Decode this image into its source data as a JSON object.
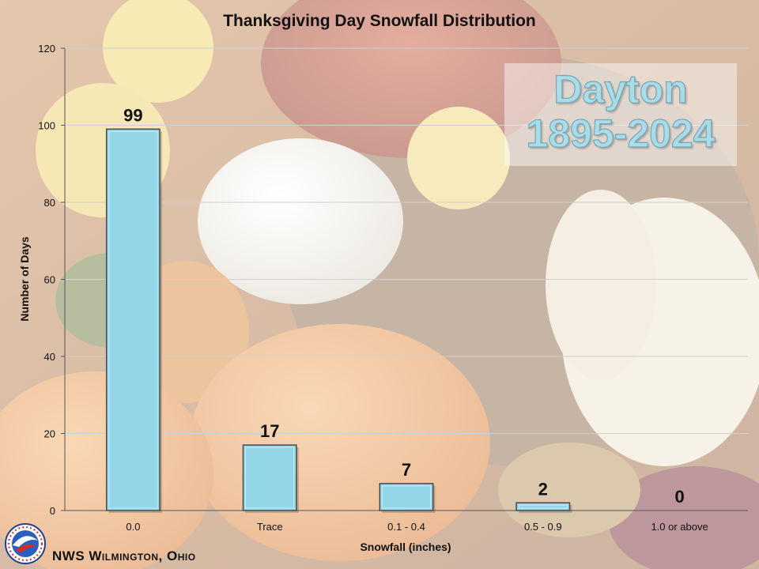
{
  "chart_data": {
    "type": "bar",
    "title": "Thanksgiving Day Snowfall Distribution",
    "xlabel": "Snowfall (inches)",
    "ylabel": "Number of Days",
    "categories": [
      "0.0",
      "Trace",
      "0.1 - 0.4",
      "0.5 - 0.9",
      "1.0 or above"
    ],
    "values": [
      99,
      17,
      7,
      2,
      0
    ],
    "data_labels": [
      "99",
      "17",
      "7",
      "2",
      "0"
    ],
    "ylim": [
      0,
      120
    ],
    "yticks": [
      "0",
      "20",
      "40",
      "60",
      "80",
      "100",
      "120"
    ],
    "grid": true,
    "bar_color": "#93d6e8",
    "bar_edge_color": "#4a4a4a"
  },
  "location": {
    "name": "Dayton",
    "years": "1895-2024",
    "color": "#a8dce8"
  },
  "footer": {
    "org": "NWS Wilmington, Ohio",
    "logo_icon": "nws-logo-icon",
    "logo_text": "NATIONAL WEATHER SERVICE"
  }
}
